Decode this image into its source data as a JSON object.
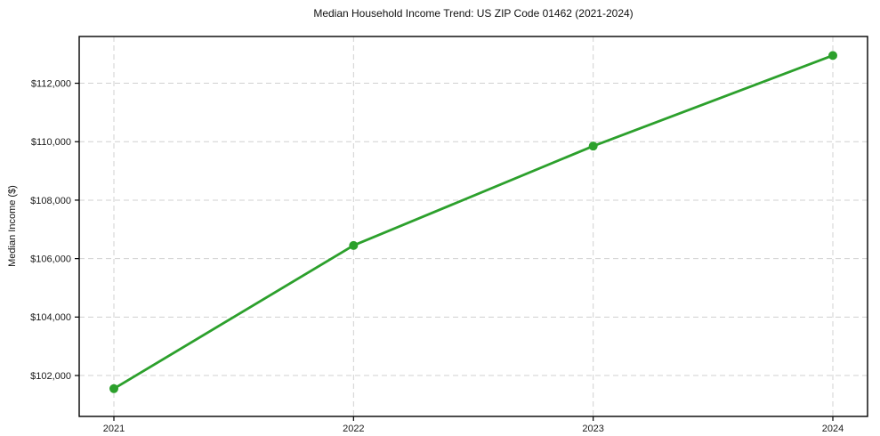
{
  "chart_data": {
    "type": "line",
    "title": "Median Household Income Trend: US ZIP Code 01462 (2021-2024)",
    "xlabel": "",
    "ylabel": "Median Income ($)",
    "categories": [
      "2021",
      "2022",
      "2023",
      "2024"
    ],
    "series": [
      {
        "name": "Median Household Income",
        "values": [
          101550,
          106450,
          109850,
          112950
        ]
      }
    ],
    "ytick_values": [
      102000,
      104000,
      106000,
      108000,
      110000,
      112000
    ],
    "ytick_labels": [
      "$102,000",
      "$104,000",
      "$106,000",
      "$108,000",
      "$110,000",
      "$112,000"
    ],
    "ylim": [
      100600,
      113600
    ],
    "grid": "dashed-both-axes",
    "legend": "none",
    "colors": {
      "line": "#2ca02c",
      "marker": "#2ca02c",
      "gridline": "#d0d0d0",
      "frame": "#000000",
      "text": "#1a1a1a"
    },
    "marker": "circle"
  }
}
